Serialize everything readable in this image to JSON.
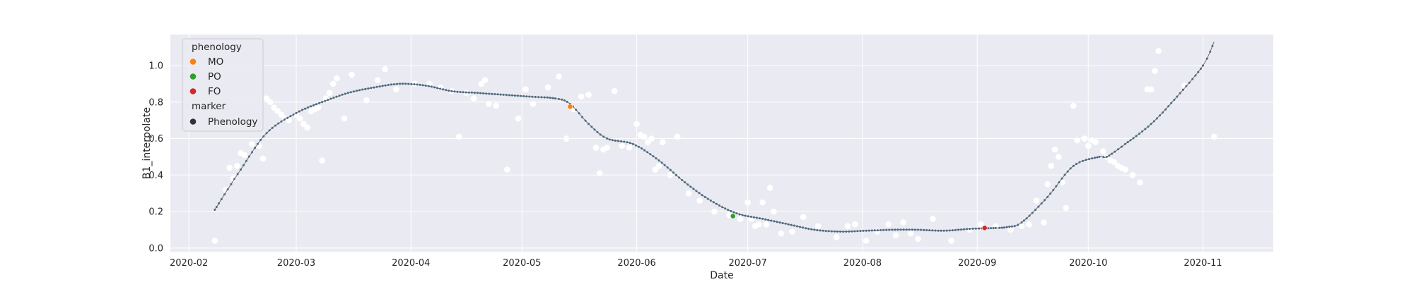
{
  "chart_data": {
    "type": "scatter",
    "title": "",
    "xlabel": "Date",
    "ylabel": "B1_interpolate",
    "xlim": [
      "2020-01-27",
      "2020-11-20"
    ],
    "ylim": [
      -0.02,
      1.17
    ],
    "x_ticks": [
      "2020-02-01",
      "2020-03-01",
      "2020-04-01",
      "2020-05-01",
      "2020-06-01",
      "2020-07-01",
      "2020-08-01",
      "2020-09-01",
      "2020-10-01",
      "2020-11-01"
    ],
    "x_tick_labels": [
      "2020-02",
      "2020-03",
      "2020-04",
      "2020-05",
      "2020-06",
      "2020-07",
      "2020-08",
      "2020-09",
      "2020-10",
      "2020-11"
    ],
    "y_ticks": [
      0.0,
      0.2,
      0.4,
      0.6,
      0.8,
      1.0
    ],
    "y_tick_labels": [
      "0.0",
      "0.2",
      "0.4",
      "0.6",
      "0.8",
      "1.0"
    ],
    "grid": true,
    "legend": {
      "placement": "top-left",
      "title": "phenology",
      "entries": [
        {
          "label": "MO",
          "color": "#ff7f0e"
        },
        {
          "label": "PO",
          "color": "#2ca02c"
        },
        {
          "label": "FO",
          "color": "#d62728"
        }
      ],
      "marker_title": "marker",
      "marker_entry": {
        "label": "Phenology",
        "color": "#333333"
      }
    },
    "colors": {
      "background": "#eaeaf2",
      "grid": "#ffffff",
      "raw_points": "#ffffff",
      "curve": "#4a6a80"
    },
    "curve": {
      "name": "B1_interpolate",
      "x": [
        "2020-02-08",
        "2020-02-15",
        "2020-02-22",
        "2020-03-01",
        "2020-03-08",
        "2020-03-15",
        "2020-03-22",
        "2020-03-29",
        "2020-04-05",
        "2020-04-12",
        "2020-04-19",
        "2020-04-26",
        "2020-05-03",
        "2020-05-10",
        "2020-05-14",
        "2020-05-19",
        "2020-05-24",
        "2020-05-31",
        "2020-06-07",
        "2020-06-14",
        "2020-06-21",
        "2020-06-28",
        "2020-07-05",
        "2020-07-12",
        "2020-07-19",
        "2020-07-26",
        "2020-08-02",
        "2020-08-09",
        "2020-08-16",
        "2020-08-23",
        "2020-08-30",
        "2020-09-06",
        "2020-09-09",
        "2020-09-13",
        "2020-09-20",
        "2020-09-27",
        "2020-10-04",
        "2020-10-06",
        "2020-10-11",
        "2020-10-18",
        "2020-10-25",
        "2020-11-01",
        "2020-11-04"
      ],
      "y": [
        0.21,
        0.43,
        0.63,
        0.74,
        0.8,
        0.85,
        0.88,
        0.9,
        0.89,
        0.86,
        0.85,
        0.84,
        0.83,
        0.82,
        0.79,
        0.68,
        0.6,
        0.57,
        0.48,
        0.36,
        0.26,
        0.19,
        0.16,
        0.13,
        0.1,
        0.09,
        0.095,
        0.1,
        0.1,
        0.095,
        0.105,
        0.11,
        0.115,
        0.14,
        0.28,
        0.45,
        0.5,
        0.5,
        0.57,
        0.68,
        0.83,
        1.0,
        1.13
      ]
    },
    "phenology_points": [
      {
        "label": "MO",
        "x": "2020-05-14",
        "y": 0.775
      },
      {
        "label": "PO",
        "x": "2020-06-27",
        "y": 0.175
      },
      {
        "label": "FO",
        "x": "2020-09-03",
        "y": 0.11
      }
    ],
    "raw_points": {
      "x": [
        "2020-02-08",
        "2020-02-11",
        "2020-02-12",
        "2020-02-13",
        "2020-02-14",
        "2020-02-15",
        "2020-02-16",
        "2020-02-18",
        "2020-02-20",
        "2020-02-21",
        "2020-02-22",
        "2020-02-23",
        "2020-02-24",
        "2020-02-25",
        "2020-02-26",
        "2020-02-27",
        "2020-02-28",
        "2020-03-01",
        "2020-03-02",
        "2020-03-03",
        "2020-03-04",
        "2020-03-05",
        "2020-03-06",
        "2020-03-07",
        "2020-03-08",
        "2020-03-09",
        "2020-03-10",
        "2020-03-11",
        "2020-03-12",
        "2020-03-14",
        "2020-03-16",
        "2020-03-20",
        "2020-03-23",
        "2020-03-25",
        "2020-03-28",
        "2020-04-02",
        "2020-04-06",
        "2020-04-09",
        "2020-04-12",
        "2020-04-14",
        "2020-04-16",
        "2020-04-18",
        "2020-04-20",
        "2020-04-21",
        "2020-04-22",
        "2020-04-24",
        "2020-04-27",
        "2020-04-30",
        "2020-05-02",
        "2020-05-04",
        "2020-05-08",
        "2020-05-11",
        "2020-05-13",
        "2020-05-15",
        "2020-05-17",
        "2020-05-19",
        "2020-05-21",
        "2020-05-22",
        "2020-05-23",
        "2020-05-24",
        "2020-05-26",
        "2020-05-28",
        "2020-05-30",
        "2020-06-01",
        "2020-06-02",
        "2020-06-03",
        "2020-06-04",
        "2020-06-05",
        "2020-06-06",
        "2020-06-07",
        "2020-06-08",
        "2020-06-10",
        "2020-06-12",
        "2020-06-15",
        "2020-06-18",
        "2020-06-22",
        "2020-06-26",
        "2020-06-29",
        "2020-07-01",
        "2020-07-02",
        "2020-07-03",
        "2020-07-04",
        "2020-07-05",
        "2020-07-06",
        "2020-07-07",
        "2020-07-08",
        "2020-07-10",
        "2020-07-13",
        "2020-07-16",
        "2020-07-20",
        "2020-07-25",
        "2020-07-28",
        "2020-07-30",
        "2020-08-02",
        "2020-08-05",
        "2020-08-08",
        "2020-08-10",
        "2020-08-12",
        "2020-08-14",
        "2020-08-16",
        "2020-08-20",
        "2020-08-25",
        "2020-08-30",
        "2020-09-02",
        "2020-09-06",
        "2020-09-10",
        "2020-09-13",
        "2020-09-15",
        "2020-09-17",
        "2020-09-19",
        "2020-09-20",
        "2020-09-21",
        "2020-09-22",
        "2020-09-23",
        "2020-09-24",
        "2020-09-25",
        "2020-09-27",
        "2020-09-28",
        "2020-09-30",
        "2020-10-01",
        "2020-10-02",
        "2020-10-03",
        "2020-10-05",
        "2020-10-06",
        "2020-10-07",
        "2020-10-08",
        "2020-10-09",
        "2020-10-10",
        "2020-10-11",
        "2020-10-13",
        "2020-10-15",
        "2020-10-17",
        "2020-10-18",
        "2020-10-19",
        "2020-10-20",
        "2020-10-27",
        "2020-11-04"
      ],
      "y": [
        0.04,
        0.32,
        0.44,
        0.38,
        0.45,
        0.52,
        0.51,
        0.57,
        0.56,
        0.49,
        0.82,
        0.8,
        0.77,
        0.75,
        0.73,
        0.71,
        0.7,
        0.73,
        0.71,
        0.68,
        0.66,
        0.75,
        0.76,
        0.77,
        0.48,
        0.82,
        0.85,
        0.9,
        0.93,
        0.71,
        0.95,
        0.81,
        0.92,
        0.98,
        0.87,
        0.9,
        0.9,
        0.88,
        0.86,
        0.61,
        0.85,
        0.82,
        0.9,
        0.92,
        0.79,
        0.78,
        0.43,
        0.71,
        0.87,
        0.79,
        0.88,
        0.94,
        0.6,
        0.76,
        0.83,
        0.84,
        0.55,
        0.41,
        0.54,
        0.55,
        0.86,
        0.56,
        0.55,
        0.68,
        0.62,
        0.61,
        0.58,
        0.6,
        0.43,
        0.45,
        0.58,
        0.4,
        0.61,
        0.3,
        0.26,
        0.2,
        0.18,
        0.16,
        0.25,
        0.16,
        0.12,
        0.13,
        0.25,
        0.13,
        0.33,
        0.2,
        0.08,
        0.09,
        0.17,
        0.12,
        0.06,
        0.12,
        0.13,
        0.04,
        0.09,
        0.13,
        0.07,
        0.14,
        0.08,
        0.05,
        0.16,
        0.04,
        0.1,
        0.13,
        0.12,
        0.1,
        0.12,
        0.13,
        0.26,
        0.14,
        0.35,
        0.45,
        0.54,
        0.5,
        0.36,
        0.22,
        0.78,
        0.59,
        0.6,
        0.56,
        0.59,
        0.58,
        0.53,
        0.5,
        0.48,
        0.47,
        0.45,
        0.44,
        0.43,
        0.4,
        0.36,
        0.87,
        0.87,
        0.97,
        1.08,
        0.89,
        0.61
      ]
    }
  }
}
